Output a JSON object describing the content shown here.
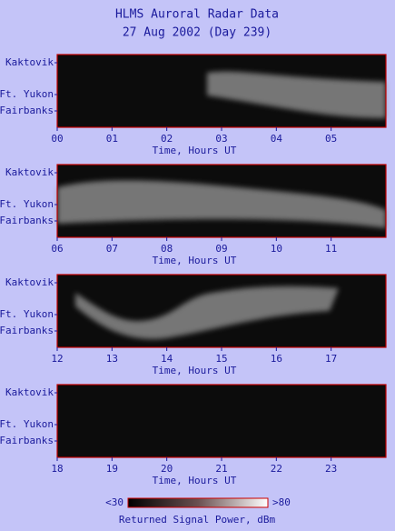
{
  "title": [
    "HLMS Auroral Radar Data",
    "27 Aug 2002 (Day 239)"
  ],
  "chart_data": [
    {
      "type": "heatmap",
      "xlabel": "Time, Hours UT",
      "ylabels": [
        "Kaktovik",
        "Ft. Yukon",
        "Fairbanks"
      ],
      "xlim": [
        0,
        6
      ],
      "xticks": [
        {
          "value": 0,
          "label": "00"
        },
        {
          "value": 1,
          "label": "01"
        },
        {
          "value": 2,
          "label": "02"
        },
        {
          "value": 3,
          "label": "03"
        },
        {
          "value": 4,
          "label": "04"
        },
        {
          "value": 5,
          "label": "05"
        }
      ]
    },
    {
      "type": "heatmap",
      "xlabel": "Time, Hours UT",
      "ylabels": [
        "Kaktovik",
        "Ft. Yukon",
        "Fairbanks"
      ],
      "xlim": [
        6,
        12
      ],
      "xticks": [
        {
          "value": 6,
          "label": "06"
        },
        {
          "value": 7,
          "label": "07"
        },
        {
          "value": 8,
          "label": "08"
        },
        {
          "value": 9,
          "label": "09"
        },
        10,
        11
      ]
    },
    {
      "type": "heatmap",
      "xlabel": "Time, Hours UT",
      "ylabels": [
        "Kaktovik",
        "Ft. Yukon",
        "Fairbanks"
      ],
      "xlim": [
        12,
        18
      ],
      "xticks": [
        12,
        13,
        14,
        15,
        16,
        17
      ]
    },
    {
      "type": "heatmap",
      "xlabel": "Time, Hours UT",
      "ylabels": [
        "Kaktovik",
        "Ft. Yukon",
        "Fairbanks"
      ],
      "xlim": [
        18,
        24
      ],
      "xticks": [
        18,
        19,
        20,
        21,
        22,
        23
      ]
    }
  ],
  "colorbar": {
    "label": "Returned Signal Power, dBm",
    "ticks": [
      {
        "value": 30,
        "label": "<30"
      },
      {
        "value": 80,
        "label": ">80"
      }
    ]
  }
}
